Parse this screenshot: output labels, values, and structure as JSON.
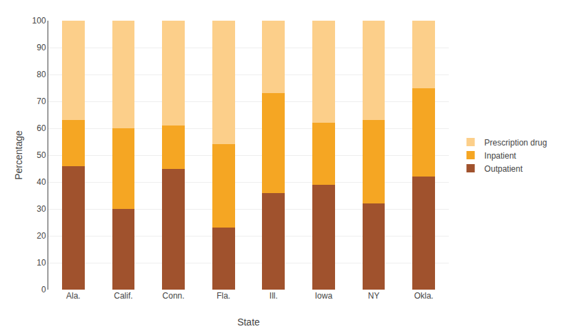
{
  "chart_data": {
    "type": "bar",
    "stacked": true,
    "categories": [
      "Ala.",
      "Calif.",
      "Conn.",
      "Fla.",
      "Ill.",
      "Iowa",
      "NY",
      "Okla."
    ],
    "series": [
      {
        "name": "Outpatient",
        "color": "#A0522D",
        "values": [
          46,
          30,
          45,
          23,
          36,
          39,
          32,
          42
        ]
      },
      {
        "name": "Inpatient",
        "color": "#F5A623",
        "values": [
          17,
          30,
          16,
          31,
          37,
          23,
          31,
          33
        ]
      },
      {
        "name": "Prescription drug",
        "color": "#FCCF8A",
        "values": [
          37,
          40,
          39,
          46,
          27,
          38,
          37,
          25
        ]
      }
    ],
    "xlabel": "State",
    "ylabel": "Percentage",
    "ylim": [
      0,
      100
    ],
    "yticks": [
      0,
      10,
      20,
      30,
      40,
      50,
      60,
      70,
      80,
      90,
      100
    ],
    "grid": true,
    "legend": "right"
  }
}
